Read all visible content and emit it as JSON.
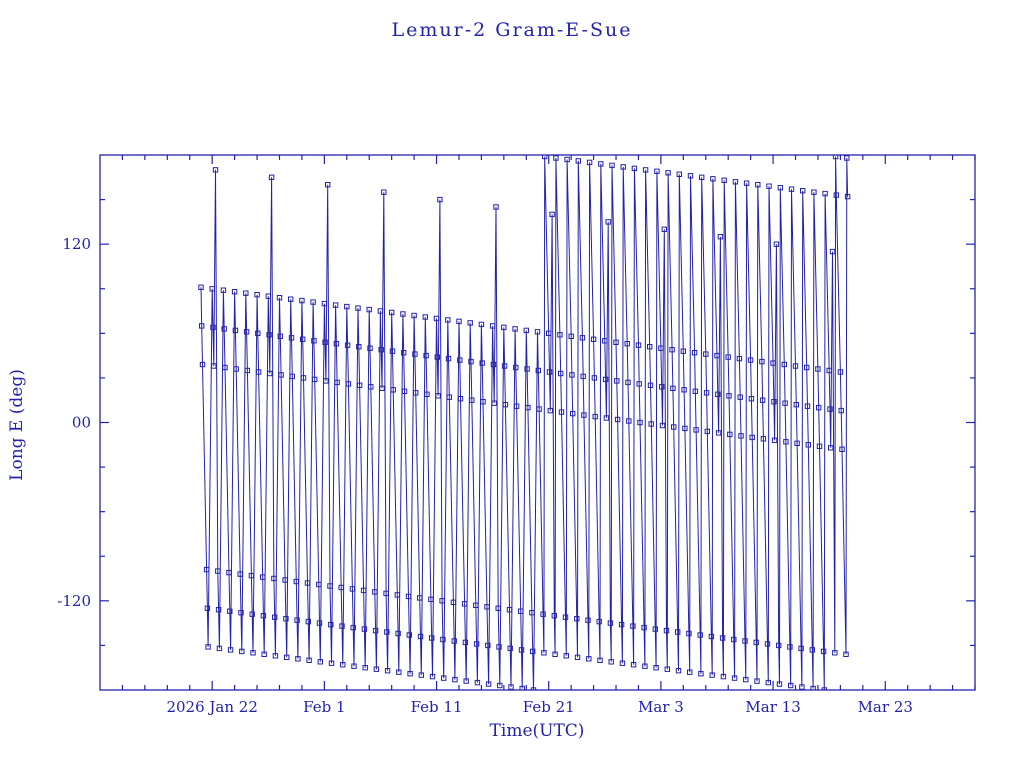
{
  "page": {
    "background": "#ffffff"
  },
  "title": "Lemur-2 Gram-E-Sue",
  "axes": {
    "xlabel": "Time(UTC)",
    "ylabel": "Long E (deg)",
    "xlim": [
      0,
      78
    ],
    "ylim": [
      -180,
      180
    ],
    "x_time_origin": "2026 Jan 12",
    "x_ticks": [
      {
        "t": 10,
        "label": "2026 Jan 22"
      },
      {
        "t": 20,
        "label": "Feb 1"
      },
      {
        "t": 30,
        "label": "Feb 11"
      },
      {
        "t": 40,
        "label": "Feb 21"
      },
      {
        "t": 50,
        "label": "Mar 3"
      },
      {
        "t": 60,
        "label": "Mar 13"
      },
      {
        "t": 70,
        "label": "Mar 23"
      }
    ],
    "x_minor_step": 2,
    "y_ticks": [
      {
        "v": 120,
        "label": "120"
      },
      {
        "v": 0,
        "label": "00"
      },
      {
        "v": -120,
        "label": "-120"
      }
    ],
    "y_minor_step": 30,
    "color": "#2222aa"
  },
  "chart_data": {
    "type": "line",
    "marker": "open-square",
    "color": "#2222aa",
    "title": "Lemur-2 Gram-E-Sue",
    "xlabel": "Time(UTC)",
    "ylabel": "Long E (deg)",
    "xlim_days_from_origin": [
      0,
      78
    ],
    "ylim": [
      -180,
      180
    ],
    "grid": false,
    "legend": "none",
    "x_unit": "days since 2026 Jan 12 UTC",
    "y_unit": "degrees East longitude, wrapped to [-180, 180]",
    "points": [
      [
        9,
        91
      ],
      [
        9.07,
        65
      ],
      [
        9.14,
        39
      ],
      [
        9.5,
        -99
      ],
      [
        9.57,
        -125
      ],
      [
        9.64,
        -151
      ],
      [
        10,
        90
      ],
      [
        10.07,
        64
      ],
      [
        10.14,
        38
      ],
      [
        10.3,
        170
      ],
      [
        10.5,
        -100
      ],
      [
        10.57,
        -126
      ],
      [
        10.64,
        -152
      ],
      [
        11,
        89
      ],
      [
        11.07,
        63
      ],
      [
        11.14,
        37
      ],
      [
        11.5,
        -101
      ],
      [
        11.57,
        -127
      ],
      [
        11.64,
        -153
      ],
      [
        12,
        88
      ],
      [
        12.07,
        62
      ],
      [
        12.14,
        36
      ],
      [
        12.5,
        -102
      ],
      [
        12.57,
        -128
      ],
      [
        12.64,
        -154
      ],
      [
        13,
        87
      ],
      [
        13.07,
        61
      ],
      [
        13.14,
        35
      ],
      [
        13.5,
        -103
      ],
      [
        13.57,
        -129
      ],
      [
        13.64,
        -155
      ],
      [
        14,
        86
      ],
      [
        14.07,
        60
      ],
      [
        14.14,
        34
      ],
      [
        14.5,
        -104
      ],
      [
        14.57,
        -130
      ],
      [
        14.64,
        -156
      ],
      [
        15,
        85
      ],
      [
        15.07,
        59
      ],
      [
        15.14,
        33
      ],
      [
        15.3,
        165
      ],
      [
        15.5,
        -105
      ],
      [
        15.57,
        -131
      ],
      [
        15.64,
        -157
      ],
      [
        16,
        84
      ],
      [
        16.07,
        58
      ],
      [
        16.14,
        32
      ],
      [
        16.5,
        -106
      ],
      [
        16.57,
        -132
      ],
      [
        16.64,
        -158
      ],
      [
        17,
        83
      ],
      [
        17.07,
        57
      ],
      [
        17.14,
        31
      ],
      [
        17.5,
        -107
      ],
      [
        17.57,
        -133
      ],
      [
        17.64,
        -159
      ],
      [
        18,
        82
      ],
      [
        18.07,
        56
      ],
      [
        18.14,
        30
      ],
      [
        18.5,
        -108
      ],
      [
        18.57,
        -134
      ],
      [
        18.64,
        -160
      ],
      [
        19,
        81
      ],
      [
        19.07,
        55
      ],
      [
        19.14,
        29
      ],
      [
        19.5,
        -109
      ],
      [
        19.57,
        -135
      ],
      [
        19.64,
        -161
      ],
      [
        20,
        80
      ],
      [
        20.07,
        54
      ],
      [
        20.14,
        28
      ],
      [
        20.3,
        160
      ],
      [
        20.5,
        -110
      ],
      [
        20.57,
        -136
      ],
      [
        20.64,
        -162
      ],
      [
        21,
        79
      ],
      [
        21.07,
        53
      ],
      [
        21.14,
        27
      ],
      [
        21.5,
        -111
      ],
      [
        21.57,
        -137
      ],
      [
        21.64,
        -163
      ],
      [
        22,
        78
      ],
      [
        22.07,
        52
      ],
      [
        22.14,
        26
      ],
      [
        22.5,
        -112
      ],
      [
        22.57,
        -138
      ],
      [
        22.64,
        -164
      ],
      [
        23,
        77
      ],
      [
        23.07,
        51
      ],
      [
        23.14,
        25
      ],
      [
        23.5,
        -113
      ],
      [
        23.57,
        -139
      ],
      [
        23.64,
        -165
      ],
      [
        24,
        76
      ],
      [
        24.07,
        50
      ],
      [
        24.14,
        24
      ],
      [
        24.5,
        -114
      ],
      [
        24.57,
        -140
      ],
      [
        24.64,
        -166
      ],
      [
        25,
        75
      ],
      [
        25.07,
        49
      ],
      [
        25.14,
        23
      ],
      [
        25.3,
        155
      ],
      [
        25.5,
        -115
      ],
      [
        25.57,
        -141
      ],
      [
        25.64,
        -167
      ],
      [
        26,
        74
      ],
      [
        26.07,
        48
      ],
      [
        26.14,
        22
      ],
      [
        26.5,
        -116
      ],
      [
        26.57,
        -142
      ],
      [
        26.64,
        -168
      ],
      [
        27,
        73
      ],
      [
        27.07,
        47
      ],
      [
        27.14,
        21
      ],
      [
        27.5,
        -117
      ],
      [
        27.57,
        -143
      ],
      [
        27.64,
        -169
      ],
      [
        28,
        72
      ],
      [
        28.07,
        46
      ],
      [
        28.14,
        20
      ],
      [
        28.5,
        -118
      ],
      [
        28.57,
        -144
      ],
      [
        28.64,
        -170
      ],
      [
        29,
        71
      ],
      [
        29.07,
        45
      ],
      [
        29.14,
        19
      ],
      [
        29.5,
        -119
      ],
      [
        29.57,
        -145
      ],
      [
        29.64,
        -171
      ],
      [
        30,
        70
      ],
      [
        30.07,
        44
      ],
      [
        30.14,
        18
      ],
      [
        30.3,
        150
      ],
      [
        30.5,
        -120
      ],
      [
        30.57,
        -146
      ],
      [
        30.64,
        -172
      ],
      [
        31,
        69
      ],
      [
        31.07,
        43
      ],
      [
        31.14,
        17
      ],
      [
        31.5,
        -121
      ],
      [
        31.57,
        -147
      ],
      [
        31.64,
        -173
      ],
      [
        32,
        68
      ],
      [
        32.07,
        42
      ],
      [
        32.14,
        16
      ],
      [
        32.5,
        -122
      ],
      [
        32.57,
        -148
      ],
      [
        32.64,
        -174
      ],
      [
        33,
        67
      ],
      [
        33.07,
        41
      ],
      [
        33.14,
        15
      ],
      [
        33.5,
        -123
      ],
      [
        33.57,
        -149
      ],
      [
        33.64,
        -175
      ],
      [
        34,
        66
      ],
      [
        34.07,
        40
      ],
      [
        34.14,
        14
      ],
      [
        34.5,
        -124
      ],
      [
        34.57,
        -150
      ],
      [
        34.64,
        -176
      ],
      [
        35,
        65
      ],
      [
        35.07,
        39
      ],
      [
        35.14,
        13
      ],
      [
        35.3,
        145
      ],
      [
        35.5,
        -125
      ],
      [
        35.57,
        -151
      ],
      [
        35.64,
        -177
      ],
      [
        36,
        64
      ],
      [
        36.07,
        38
      ],
      [
        36.14,
        12
      ],
      [
        36.5,
        -126
      ],
      [
        36.57,
        -152
      ],
      [
        36.64,
        -178
      ],
      [
        37,
        63
      ],
      [
        37.07,
        37
      ],
      [
        37.14,
        11
      ],
      [
        37.5,
        -127
      ],
      [
        37.57,
        -153
      ],
      [
        37.64,
        -179
      ],
      [
        38,
        62
      ],
      [
        38.07,
        36
      ],
      [
        38.14,
        10
      ],
      [
        38.5,
        -128
      ],
      [
        38.57,
        -154
      ],
      [
        38.64,
        -180
      ],
      [
        39,
        61
      ],
      [
        39.07,
        35
      ],
      [
        39.14,
        9
      ],
      [
        39.5,
        -129
      ],
      [
        39.57,
        -155
      ],
      [
        39.64,
        179
      ],
      [
        40,
        60
      ],
      [
        40.07,
        34
      ],
      [
        40.14,
        8
      ],
      [
        40.3,
        140
      ],
      [
        40.5,
        -130
      ],
      [
        40.57,
        -156
      ],
      [
        40.64,
        178
      ],
      [
        41,
        59
      ],
      [
        41.07,
        33
      ],
      [
        41.14,
        7
      ],
      [
        41.5,
        -131
      ],
      [
        41.57,
        -157
      ],
      [
        41.64,
        177
      ],
      [
        42,
        58
      ],
      [
        42.07,
        32
      ],
      [
        42.14,
        6
      ],
      [
        42.5,
        -132
      ],
      [
        42.57,
        -158
      ],
      [
        42.64,
        176
      ],
      [
        43,
        57
      ],
      [
        43.07,
        31
      ],
      [
        43.14,
        5
      ],
      [
        43.5,
        -133
      ],
      [
        43.57,
        -159
      ],
      [
        43.64,
        175
      ],
      [
        44,
        56
      ],
      [
        44.07,
        30
      ],
      [
        44.14,
        4
      ],
      [
        44.5,
        -134
      ],
      [
        44.57,
        -160
      ],
      [
        44.64,
        174
      ],
      [
        45,
        55
      ],
      [
        45.07,
        29
      ],
      [
        45.14,
        3
      ],
      [
        45.3,
        135
      ],
      [
        45.5,
        -135
      ],
      [
        45.57,
        -161
      ],
      [
        45.64,
        173
      ],
      [
        46,
        54
      ],
      [
        46.07,
        28
      ],
      [
        46.14,
        2
      ],
      [
        46.5,
        -136
      ],
      [
        46.57,
        -162
      ],
      [
        46.64,
        172
      ],
      [
        47,
        53
      ],
      [
        47.07,
        27
      ],
      [
        47.14,
        1
      ],
      [
        47.5,
        -137
      ],
      [
        47.57,
        -163
      ],
      [
        47.64,
        171
      ],
      [
        48,
        52
      ],
      [
        48.07,
        26
      ],
      [
        48.14,
        0
      ],
      [
        48.5,
        -138
      ],
      [
        48.57,
        -164
      ],
      [
        48.64,
        170
      ],
      [
        49,
        51
      ],
      [
        49.07,
        25
      ],
      [
        49.14,
        -1
      ],
      [
        49.5,
        -139
      ],
      [
        49.57,
        -165
      ],
      [
        49.64,
        169
      ],
      [
        50,
        50
      ],
      [
        50.07,
        24
      ],
      [
        50.14,
        -2
      ],
      [
        50.3,
        130
      ],
      [
        50.5,
        -140
      ],
      [
        50.57,
        -166
      ],
      [
        50.64,
        168
      ],
      [
        51,
        49
      ],
      [
        51.07,
        23
      ],
      [
        51.14,
        -3
      ],
      [
        51.5,
        -141
      ],
      [
        51.57,
        -167
      ],
      [
        51.64,
        167
      ],
      [
        52,
        48
      ],
      [
        52.07,
        22
      ],
      [
        52.14,
        -4
      ],
      [
        52.5,
        -142
      ],
      [
        52.57,
        -168
      ],
      [
        52.64,
        166
      ],
      [
        53,
        47
      ],
      [
        53.07,
        21
      ],
      [
        53.14,
        -5
      ],
      [
        53.5,
        -143
      ],
      [
        53.57,
        -169
      ],
      [
        53.64,
        165
      ],
      [
        54,
        46
      ],
      [
        54.07,
        20
      ],
      [
        54.14,
        -6
      ],
      [
        54.5,
        -144
      ],
      [
        54.57,
        -170
      ],
      [
        54.64,
        164
      ],
      [
        55,
        45
      ],
      [
        55.07,
        19
      ],
      [
        55.14,
        -7
      ],
      [
        55.3,
        125
      ],
      [
        55.5,
        -145
      ],
      [
        55.57,
        -171
      ],
      [
        55.64,
        163
      ],
      [
        56,
        44
      ],
      [
        56.07,
        18
      ],
      [
        56.14,
        -8
      ],
      [
        56.5,
        -146
      ],
      [
        56.57,
        -172
      ],
      [
        56.64,
        162
      ],
      [
        57,
        43
      ],
      [
        57.07,
        17
      ],
      [
        57.14,
        -9
      ],
      [
        57.5,
        -147
      ],
      [
        57.57,
        -173
      ],
      [
        57.64,
        161
      ],
      [
        58,
        42
      ],
      [
        58.07,
        16
      ],
      [
        58.14,
        -10
      ],
      [
        58.5,
        -148
      ],
      [
        58.57,
        -174
      ],
      [
        58.64,
        160
      ],
      [
        59,
        41
      ],
      [
        59.07,
        15
      ],
      [
        59.14,
        -11
      ],
      [
        59.5,
        -149
      ],
      [
        59.57,
        -175
      ],
      [
        59.64,
        159
      ],
      [
        60,
        40
      ],
      [
        60.07,
        14
      ],
      [
        60.14,
        -12
      ],
      [
        60.3,
        120
      ],
      [
        60.5,
        -150
      ],
      [
        60.57,
        -176
      ],
      [
        60.64,
        158
      ],
      [
        61,
        39
      ],
      [
        61.07,
        13
      ],
      [
        61.14,
        -13
      ],
      [
        61.5,
        -151
      ],
      [
        61.57,
        -177
      ],
      [
        61.64,
        157
      ],
      [
        62,
        38
      ],
      [
        62.07,
        12
      ],
      [
        62.14,
        -14
      ],
      [
        62.5,
        -152
      ],
      [
        62.57,
        -178
      ],
      [
        62.64,
        156
      ],
      [
        63,
        37
      ],
      [
        63.07,
        11
      ],
      [
        63.14,
        -15
      ],
      [
        63.5,
        -153
      ],
      [
        63.57,
        -179
      ],
      [
        63.64,
        155
      ],
      [
        64,
        36
      ],
      [
        64.07,
        10
      ],
      [
        64.14,
        -16
      ],
      [
        64.5,
        -154
      ],
      [
        64.57,
        -180
      ],
      [
        64.64,
        154
      ],
      [
        65,
        35
      ],
      [
        65.07,
        9
      ],
      [
        65.14,
        -17
      ],
      [
        65.3,
        115
      ],
      [
        65.5,
        -155
      ],
      [
        65.57,
        179
      ],
      [
        65.64,
        153
      ],
      [
        66,
        34
      ],
      [
        66.07,
        8
      ],
      [
        66.14,
        -18
      ],
      [
        66.5,
        -156
      ],
      [
        66.57,
        178
      ],
      [
        66.64,
        152
      ]
    ]
  }
}
